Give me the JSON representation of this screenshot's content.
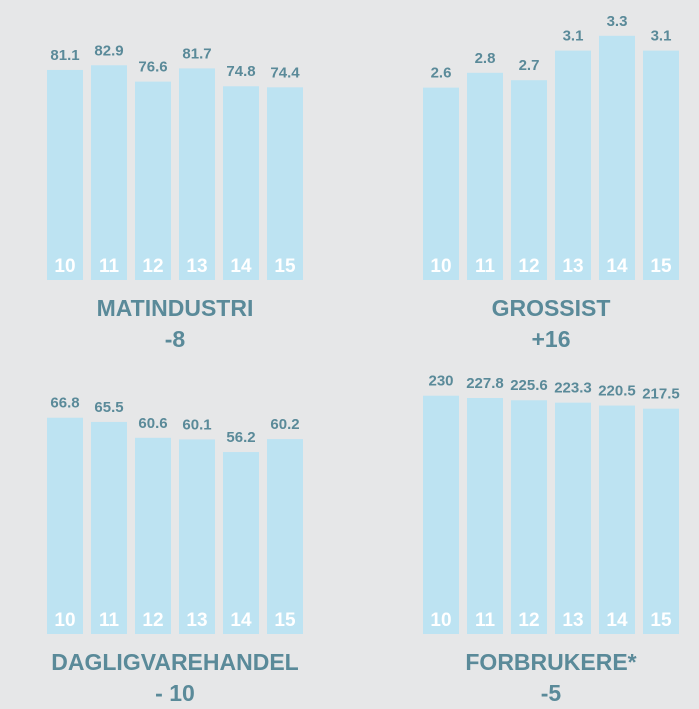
{
  "chart_data": [
    {
      "type": "bar",
      "title": "MATINDUSTRI",
      "subtitle": "-8",
      "categories": [
        "10",
        "11",
        "12",
        "13",
        "14",
        "15"
      ],
      "values": [
        81.1,
        82.9,
        76.6,
        81.7,
        74.8,
        74.4
      ],
      "color": "#bde3f2",
      "ylim": [
        0,
        100
      ]
    },
    {
      "type": "bar",
      "title": "GROSSIST",
      "subtitle": "+16",
      "categories": [
        "10",
        "11",
        "12",
        "13",
        "14",
        "15"
      ],
      "values": [
        2.6,
        2.8,
        2.7,
        3.1,
        3.3,
        3.1
      ],
      "color": "#bde3f2",
      "ylim": [
        0,
        3.5
      ]
    },
    {
      "type": "bar",
      "title": "DAGLIGVAREHANDEL",
      "subtitle": "- 10",
      "categories": [
        "10",
        "11",
        "12",
        "13",
        "14",
        "15"
      ],
      "values": [
        66.8,
        65.5,
        60.6,
        60.1,
        56.2,
        60.2
      ],
      "color": "#bde3f2",
      "ylim": [
        0,
        80
      ]
    },
    {
      "type": "bar",
      "title": "FORBRUKERE*",
      "subtitle": "-5",
      "categories": [
        "10",
        "11",
        "12",
        "13",
        "14",
        "15"
      ],
      "values": [
        230,
        227.8,
        225.6,
        223.3,
        220.5,
        217.5
      ],
      "color": "#bde3f2",
      "ylim": [
        0,
        250
      ]
    }
  ]
}
